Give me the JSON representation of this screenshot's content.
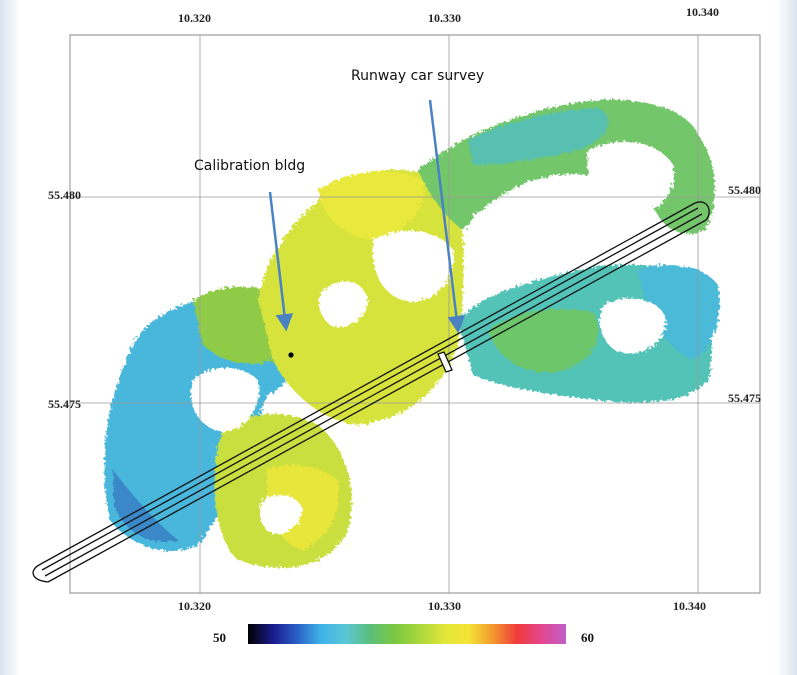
{
  "map": {
    "lon_ticks_top": [
      "10.320",
      "10.330",
      "10.340"
    ],
    "lon_ticks_bottom": [
      "10.320",
      "10.330",
      "10.340"
    ],
    "lat_ticks_left": [
      "55.480",
      "55.475"
    ],
    "lat_ticks_right": [
      "55.480",
      "55.475"
    ],
    "annotations": [
      "Calibration bldg",
      "Runway car survey"
    ],
    "colorbar": {
      "min": "50",
      "max": "60",
      "colors": [
        "#000000",
        "#1a1a8c",
        "#2a5fc8",
        "#3fb4e8",
        "#5bc6d6",
        "#5bbf7a",
        "#7ac943",
        "#a9d63b",
        "#e0e63a",
        "#f5e436",
        "#f39a2e",
        "#ef3b3b",
        "#e4478f",
        "#c05ec9"
      ]
    },
    "colors": {
      "grid": "#9a9a9a",
      "runway": "#111111"
    }
  }
}
